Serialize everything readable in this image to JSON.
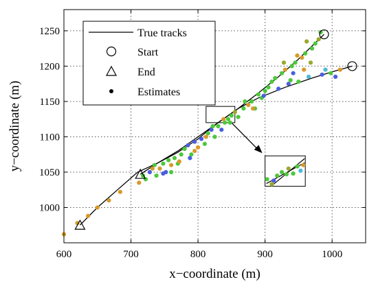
{
  "chart_data": {
    "type": "scatter",
    "xlabel": "x−coordinate (m)",
    "ylabel": "y−coordinate (m)",
    "xlim": [
      600,
      1050
    ],
    "ylim": [
      950,
      1280
    ],
    "xticks": [
      "600",
      "700",
      "800",
      "900",
      "1000"
    ],
    "yticks": [
      "1000",
      "1050",
      "1100",
      "1150",
      "1200",
      "1250"
    ],
    "grid": true,
    "legend": {
      "placement": "top-left",
      "entries": [
        "True tracks",
        "Start",
        "End",
        "Estimates"
      ]
    },
    "colors": {
      "line": "#000000",
      "green": "#4cc83a",
      "blue": "#4a5fe0",
      "orange": "#d79a2a",
      "olive": "#9aa82a",
      "cyan": "#4fb8d8"
    },
    "tracks": [
      {
        "x": [
          624,
          650,
          680,
          710,
          740,
          770,
          800,
          830,
          860,
          890,
          920,
          950,
          988
        ],
        "y": [
          975,
          1000,
          1025,
          1050,
          1063,
          1078,
          1097,
          1120,
          1140,
          1162,
          1185,
          1210,
          1245
        ]
      },
      {
        "x": [
          714,
          740,
          770,
          800,
          830,
          860,
          890,
          930,
          970,
          1000,
          1030
        ],
        "y": [
          1047,
          1063,
          1080,
          1100,
          1120,
          1140,
          1155,
          1170,
          1183,
          1192,
          1200
        ]
      }
    ],
    "start_markers": [
      {
        "x": 988,
        "y": 1245
      },
      {
        "x": 1030,
        "y": 1200
      }
    ],
    "end_markers": [
      {
        "x": 624,
        "y": 975
      },
      {
        "x": 714,
        "y": 1047
      }
    ],
    "inset": {
      "source": {
        "x0": 812,
        "x1": 855,
        "y0": 1120,
        "y1": 1143
      },
      "target": {
        "x0": 900,
        "x1": 960,
        "y0": 1030,
        "y1": 1073
      }
    },
    "estimates": [
      {
        "x": 600,
        "y": 962,
        "c": "orange"
      },
      {
        "x": 620,
        "y": 978,
        "c": "orange"
      },
      {
        "x": 636,
        "y": 988,
        "c": "orange"
      },
      {
        "x": 650,
        "y": 1000,
        "c": "orange"
      },
      {
        "x": 667,
        "y": 1010,
        "c": "orange"
      },
      {
        "x": 684,
        "y": 1022,
        "c": "orange"
      },
      {
        "x": 712,
        "y": 1035,
        "c": "orange"
      },
      {
        "x": 718,
        "y": 1045,
        "c": "green"
      },
      {
        "x": 722,
        "y": 1040,
        "c": "green"
      },
      {
        "x": 728,
        "y": 1050,
        "c": "blue"
      },
      {
        "x": 732,
        "y": 1055,
        "c": "orange"
      },
      {
        "x": 738,
        "y": 1045,
        "c": "green"
      },
      {
        "x": 743,
        "y": 1055,
        "c": "orange"
      },
      {
        "x": 748,
        "y": 1062,
        "c": "green"
      },
      {
        "x": 752,
        "y": 1050,
        "c": "blue"
      },
      {
        "x": 756,
        "y": 1067,
        "c": "green"
      },
      {
        "x": 760,
        "y": 1060,
        "c": "orange"
      },
      {
        "x": 765,
        "y": 1070,
        "c": "green"
      },
      {
        "x": 770,
        "y": 1062,
        "c": "green"
      },
      {
        "x": 775,
        "y": 1075,
        "c": "green"
      },
      {
        "x": 780,
        "y": 1083,
        "c": "green"
      },
      {
        "x": 785,
        "y": 1088,
        "c": "blue"
      },
      {
        "x": 790,
        "y": 1075,
        "c": "green"
      },
      {
        "x": 795,
        "y": 1093,
        "c": "blue"
      },
      {
        "x": 800,
        "y": 1085,
        "c": "orange"
      },
      {
        "x": 805,
        "y": 1097,
        "c": "blue"
      },
      {
        "x": 810,
        "y": 1090,
        "c": "green"
      },
      {
        "x": 815,
        "y": 1105,
        "c": "green"
      },
      {
        "x": 820,
        "y": 1110,
        "c": "blue"
      },
      {
        "x": 825,
        "y": 1100,
        "c": "green"
      },
      {
        "x": 830,
        "y": 1115,
        "c": "green"
      },
      {
        "x": 835,
        "y": 1110,
        "c": "blue"
      },
      {
        "x": 840,
        "y": 1120,
        "c": "green"
      },
      {
        "x": 845,
        "y": 1125,
        "c": "green"
      },
      {
        "x": 850,
        "y": 1130,
        "c": "green"
      },
      {
        "x": 855,
        "y": 1135,
        "c": "olive"
      },
      {
        "x": 860,
        "y": 1128,
        "c": "green"
      },
      {
        "x": 868,
        "y": 1140,
        "c": "green"
      },
      {
        "x": 875,
        "y": 1145,
        "c": "orange"
      },
      {
        "x": 880,
        "y": 1150,
        "c": "green"
      },
      {
        "x": 885,
        "y": 1140,
        "c": "green"
      },
      {
        "x": 890,
        "y": 1160,
        "c": "green"
      },
      {
        "x": 895,
        "y": 1155,
        "c": "green"
      },
      {
        "x": 900,
        "y": 1165,
        "c": "green"
      },
      {
        "x": 905,
        "y": 1170,
        "c": "green"
      },
      {
        "x": 910,
        "y": 1178,
        "c": "green"
      },
      {
        "x": 915,
        "y": 1183,
        "c": "green"
      },
      {
        "x": 920,
        "y": 1168,
        "c": "blue"
      },
      {
        "x": 925,
        "y": 1190,
        "c": "green"
      },
      {
        "x": 930,
        "y": 1195,
        "c": "orange"
      },
      {
        "x": 935,
        "y": 1175,
        "c": "blue"
      },
      {
        "x": 940,
        "y": 1200,
        "c": "green"
      },
      {
        "x": 945,
        "y": 1205,
        "c": "green"
      },
      {
        "x": 950,
        "y": 1178,
        "c": "green"
      },
      {
        "x": 955,
        "y": 1212,
        "c": "orange"
      },
      {
        "x": 960,
        "y": 1218,
        "c": "green"
      },
      {
        "x": 965,
        "y": 1185,
        "c": "cyan"
      },
      {
        "x": 970,
        "y": 1225,
        "c": "green"
      },
      {
        "x": 975,
        "y": 1232,
        "c": "green"
      },
      {
        "x": 980,
        "y": 1238,
        "c": "olive"
      },
      {
        "x": 985,
        "y": 1188,
        "c": "blue"
      },
      {
        "x": 990,
        "y": 1195,
        "c": "cyan"
      },
      {
        "x": 998,
        "y": 1190,
        "c": "green"
      },
      {
        "x": 1005,
        "y": 1185,
        "c": "blue"
      },
      {
        "x": 942,
        "y": 1190,
        "c": "blue"
      },
      {
        "x": 958,
        "y": 1195,
        "c": "orange"
      },
      {
        "x": 898,
        "y": 1158,
        "c": "blue"
      },
      {
        "x": 882,
        "y": 1140,
        "c": "orange"
      },
      {
        "x": 1012,
        "y": 1195,
        "c": "orange"
      },
      {
        "x": 968,
        "y": 1205,
        "c": "olive"
      },
      {
        "x": 938,
        "y": 1180,
        "c": "green"
      },
      {
        "x": 948,
        "y": 1215,
        "c": "orange"
      },
      {
        "x": 928,
        "y": 1205,
        "c": "olive"
      },
      {
        "x": 962,
        "y": 1235,
        "c": "olive"
      },
      {
        "x": 983,
        "y": 1248,
        "c": "green"
      },
      {
        "x": 870,
        "y": 1150,
        "c": "green"
      },
      {
        "x": 812,
        "y": 1100,
        "c": "orange"
      },
      {
        "x": 795,
        "y": 1080,
        "c": "orange"
      },
      {
        "x": 772,
        "y": 1065,
        "c": "orange"
      },
      {
        "x": 748,
        "y": 1048,
        "c": "blue"
      },
      {
        "x": 735,
        "y": 1060,
        "c": "green"
      },
      {
        "x": 760,
        "y": 1050,
        "c": "green"
      },
      {
        "x": 788,
        "y": 1070,
        "c": "blue"
      },
      {
        "x": 822,
        "y": 1115,
        "c": "green"
      },
      {
        "x": 838,
        "y": 1125,
        "c": "orange"
      },
      {
        "x": 848,
        "y": 1120,
        "c": "green"
      },
      {
        "x": 903,
        "y": 1040,
        "c": "green"
      },
      {
        "x": 910,
        "y": 1033,
        "c": "olive"
      },
      {
        "x": 918,
        "y": 1045,
        "c": "green"
      },
      {
        "x": 925,
        "y": 1050,
        "c": "green"
      },
      {
        "x": 935,
        "y": 1055,
        "c": "olive"
      },
      {
        "x": 942,
        "y": 1048,
        "c": "green"
      },
      {
        "x": 948,
        "y": 1058,
        "c": "green"
      },
      {
        "x": 953,
        "y": 1052,
        "c": "cyan"
      },
      {
        "x": 913,
        "y": 1038,
        "c": "blue"
      },
      {
        "x": 932,
        "y": 1047,
        "c": "green"
      },
      {
        "x": 957,
        "y": 1060,
        "c": "orange"
      }
    ]
  }
}
